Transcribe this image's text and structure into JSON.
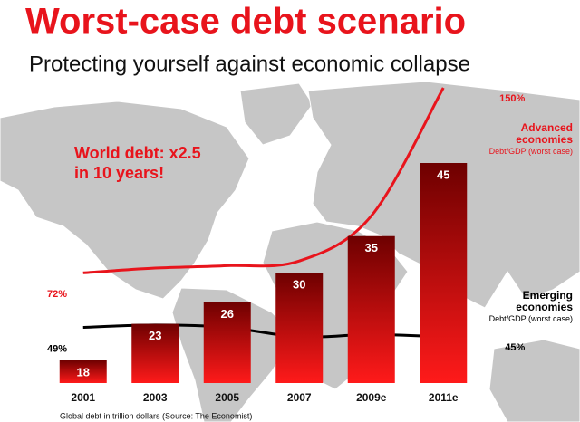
{
  "chart_data": {
    "type": "bar",
    "title": "Worst-case debt scenario",
    "subtitle": "Protecting yourself against economic collapse",
    "annotation": [
      "World debt: x2.5",
      "in 10 years!"
    ],
    "footnote": "Global debt in trillion dollars (Source: The Economist)",
    "categories": [
      "2001",
      "2003",
      "2005",
      "2007",
      "2009e",
      "2011e"
    ],
    "values": [
      18,
      23,
      26,
      30,
      35,
      45
    ],
    "color": "#b00000",
    "series": [
      {
        "name": "Advanced economies",
        "note": "Debt/GDP (worst case)",
        "type": "line",
        "color": "#e8141c",
        "values": [
          72,
          74,
          75,
          77,
          96,
          150
        ],
        "value_labels": [
          "72%",
          null,
          null,
          null,
          null,
          "150%"
        ]
      },
      {
        "name": "Emerging economies",
        "note": "Debt/GDP (worst case)",
        "type": "line",
        "color": "#000000",
        "values": [
          49,
          50,
          49,
          45,
          46,
          45
        ],
        "value_labels": [
          "49%",
          null,
          null,
          null,
          null,
          "45%"
        ]
      }
    ]
  }
}
